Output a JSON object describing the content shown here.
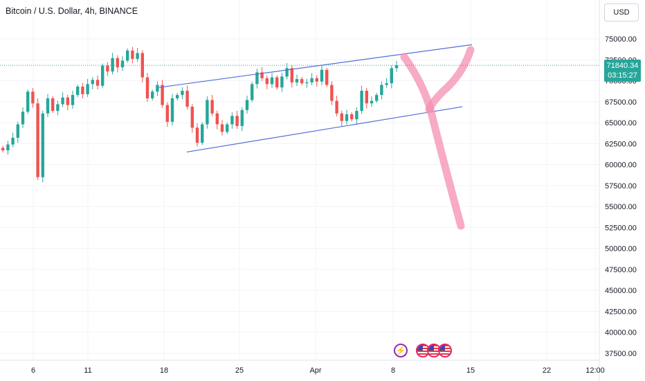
{
  "header": {
    "symbol_title": "Bitcoin / U.S. Dollar, 4h, BINANCE"
  },
  "currency_button": {
    "label": "USD"
  },
  "last_price": {
    "price": "71840.34",
    "countdown": "03:15:27"
  },
  "colors": {
    "up": "#26a69a",
    "down": "#ef5350",
    "channel": "#4f6fd8",
    "drawing": "#f48fb1",
    "grid": "#f0f3fa",
    "price_line": "#26a69a"
  },
  "event_icons": [
    {
      "name": "lightning-icon",
      "type": "bolt"
    },
    {
      "name": "us-flag-icon",
      "type": "flag"
    },
    {
      "name": "us-flag-icon",
      "type": "flag"
    },
    {
      "name": "us-flag-icon",
      "type": "flag"
    }
  ],
  "chart_data": {
    "type": "candlestick",
    "interval": "4h",
    "y_axis": {
      "ticks": [
        "75000.00",
        "72500.00",
        "70000.00",
        "67500.00",
        "65000.00",
        "62500.00",
        "60000.00",
        "57500.00",
        "55000.00",
        "52500.00",
        "50000.00",
        "47500.00",
        "45000.00",
        "42500.00",
        "40000.00",
        "37500.00"
      ],
      "visible_range": [
        36500,
        77000
      ],
      "position": "right"
    },
    "x_axis": {
      "tick_labels": [
        "6",
        "11",
        "18",
        "25",
        "Apr",
        "8",
        "15",
        "22",
        "12:00"
      ]
    },
    "grid": true,
    "series": [
      {
        "open_close_approx": [
          [
            62000,
            61700
          ],
          [
            61700,
            62400
          ],
          [
            62400,
            63200
          ],
          [
            63200,
            64800
          ],
          [
            64800,
            66300
          ],
          [
            66300,
            68700
          ],
          [
            68700,
            67300
          ],
          [
            67300,
            58500
          ],
          [
            58500,
            66100
          ],
          [
            66100,
            67900
          ],
          [
            67900,
            66400
          ],
          [
            66400,
            67200
          ],
          [
            67200,
            68000
          ],
          [
            68000,
            67100
          ],
          [
            67100,
            68300
          ],
          [
            68300,
            69300
          ],
          [
            69300,
            68400
          ],
          [
            68400,
            69600
          ],
          [
            69600,
            70100
          ],
          [
            70100,
            69400
          ],
          [
            69400,
            71800
          ],
          [
            71800,
            71100
          ],
          [
            71100,
            72700
          ],
          [
            72700,
            71600
          ],
          [
            71600,
            72400
          ],
          [
            72400,
            73600
          ],
          [
            73600,
            72600
          ],
          [
            72600,
            73300
          ],
          [
            73300,
            70400
          ],
          [
            70400,
            67900
          ],
          [
            67900,
            68700
          ],
          [
            68700,
            69500
          ],
          [
            69500,
            67100
          ],
          [
            67100,
            65100
          ],
          [
            65100,
            67900
          ],
          [
            67900,
            68300
          ],
          [
            68300,
            68800
          ],
          [
            68800,
            66900
          ],
          [
            66900,
            64400
          ],
          [
            64400,
            62600
          ],
          [
            62600,
            64800
          ],
          [
            64800,
            67700
          ],
          [
            67700,
            66100
          ],
          [
            66100,
            64800
          ],
          [
            64800,
            63900
          ],
          [
            63900,
            64800
          ],
          [
            64800,
            65800
          ],
          [
            65800,
            64600
          ],
          [
            64600,
            66500
          ],
          [
            66500,
            67700
          ],
          [
            67700,
            69600
          ],
          [
            69600,
            71000
          ],
          [
            71000,
            70300
          ],
          [
            70300,
            69600
          ],
          [
            69600,
            70400
          ],
          [
            70400,
            69200
          ],
          [
            69200,
            70500
          ],
          [
            70500,
            71500
          ],
          [
            71500,
            69800
          ],
          [
            69800,
            70200
          ],
          [
            70200,
            69700
          ],
          [
            69700,
            69800
          ],
          [
            69800,
            70300
          ],
          [
            70300,
            69900
          ],
          [
            69900,
            71300
          ],
          [
            71300,
            69500
          ],
          [
            69500,
            67600
          ],
          [
            67600,
            66100
          ],
          [
            66100,
            65200
          ],
          [
            65200,
            66000
          ],
          [
            66000,
            65400
          ],
          [
            65400,
            66400
          ],
          [
            66400,
            68800
          ],
          [
            68800,
            67300
          ],
          [
            67300,
            67600
          ],
          [
            67600,
            68300
          ],
          [
            68300,
            69500
          ],
          [
            69500,
            69700
          ],
          [
            69700,
            71500
          ],
          [
            71500,
            71840
          ]
        ]
      }
    ],
    "drawings": [
      {
        "type": "parallel-channel",
        "upper": [
          "2024-03-17",
          69200,
          "2024-04-15",
          74300
        ],
        "lower": [
          "2024-03-20",
          61500,
          "2024-04-13",
          66900
        ]
      },
      {
        "type": "freehand-x-mark",
        "color": "pink"
      }
    ],
    "last_price": 71840.34
  }
}
